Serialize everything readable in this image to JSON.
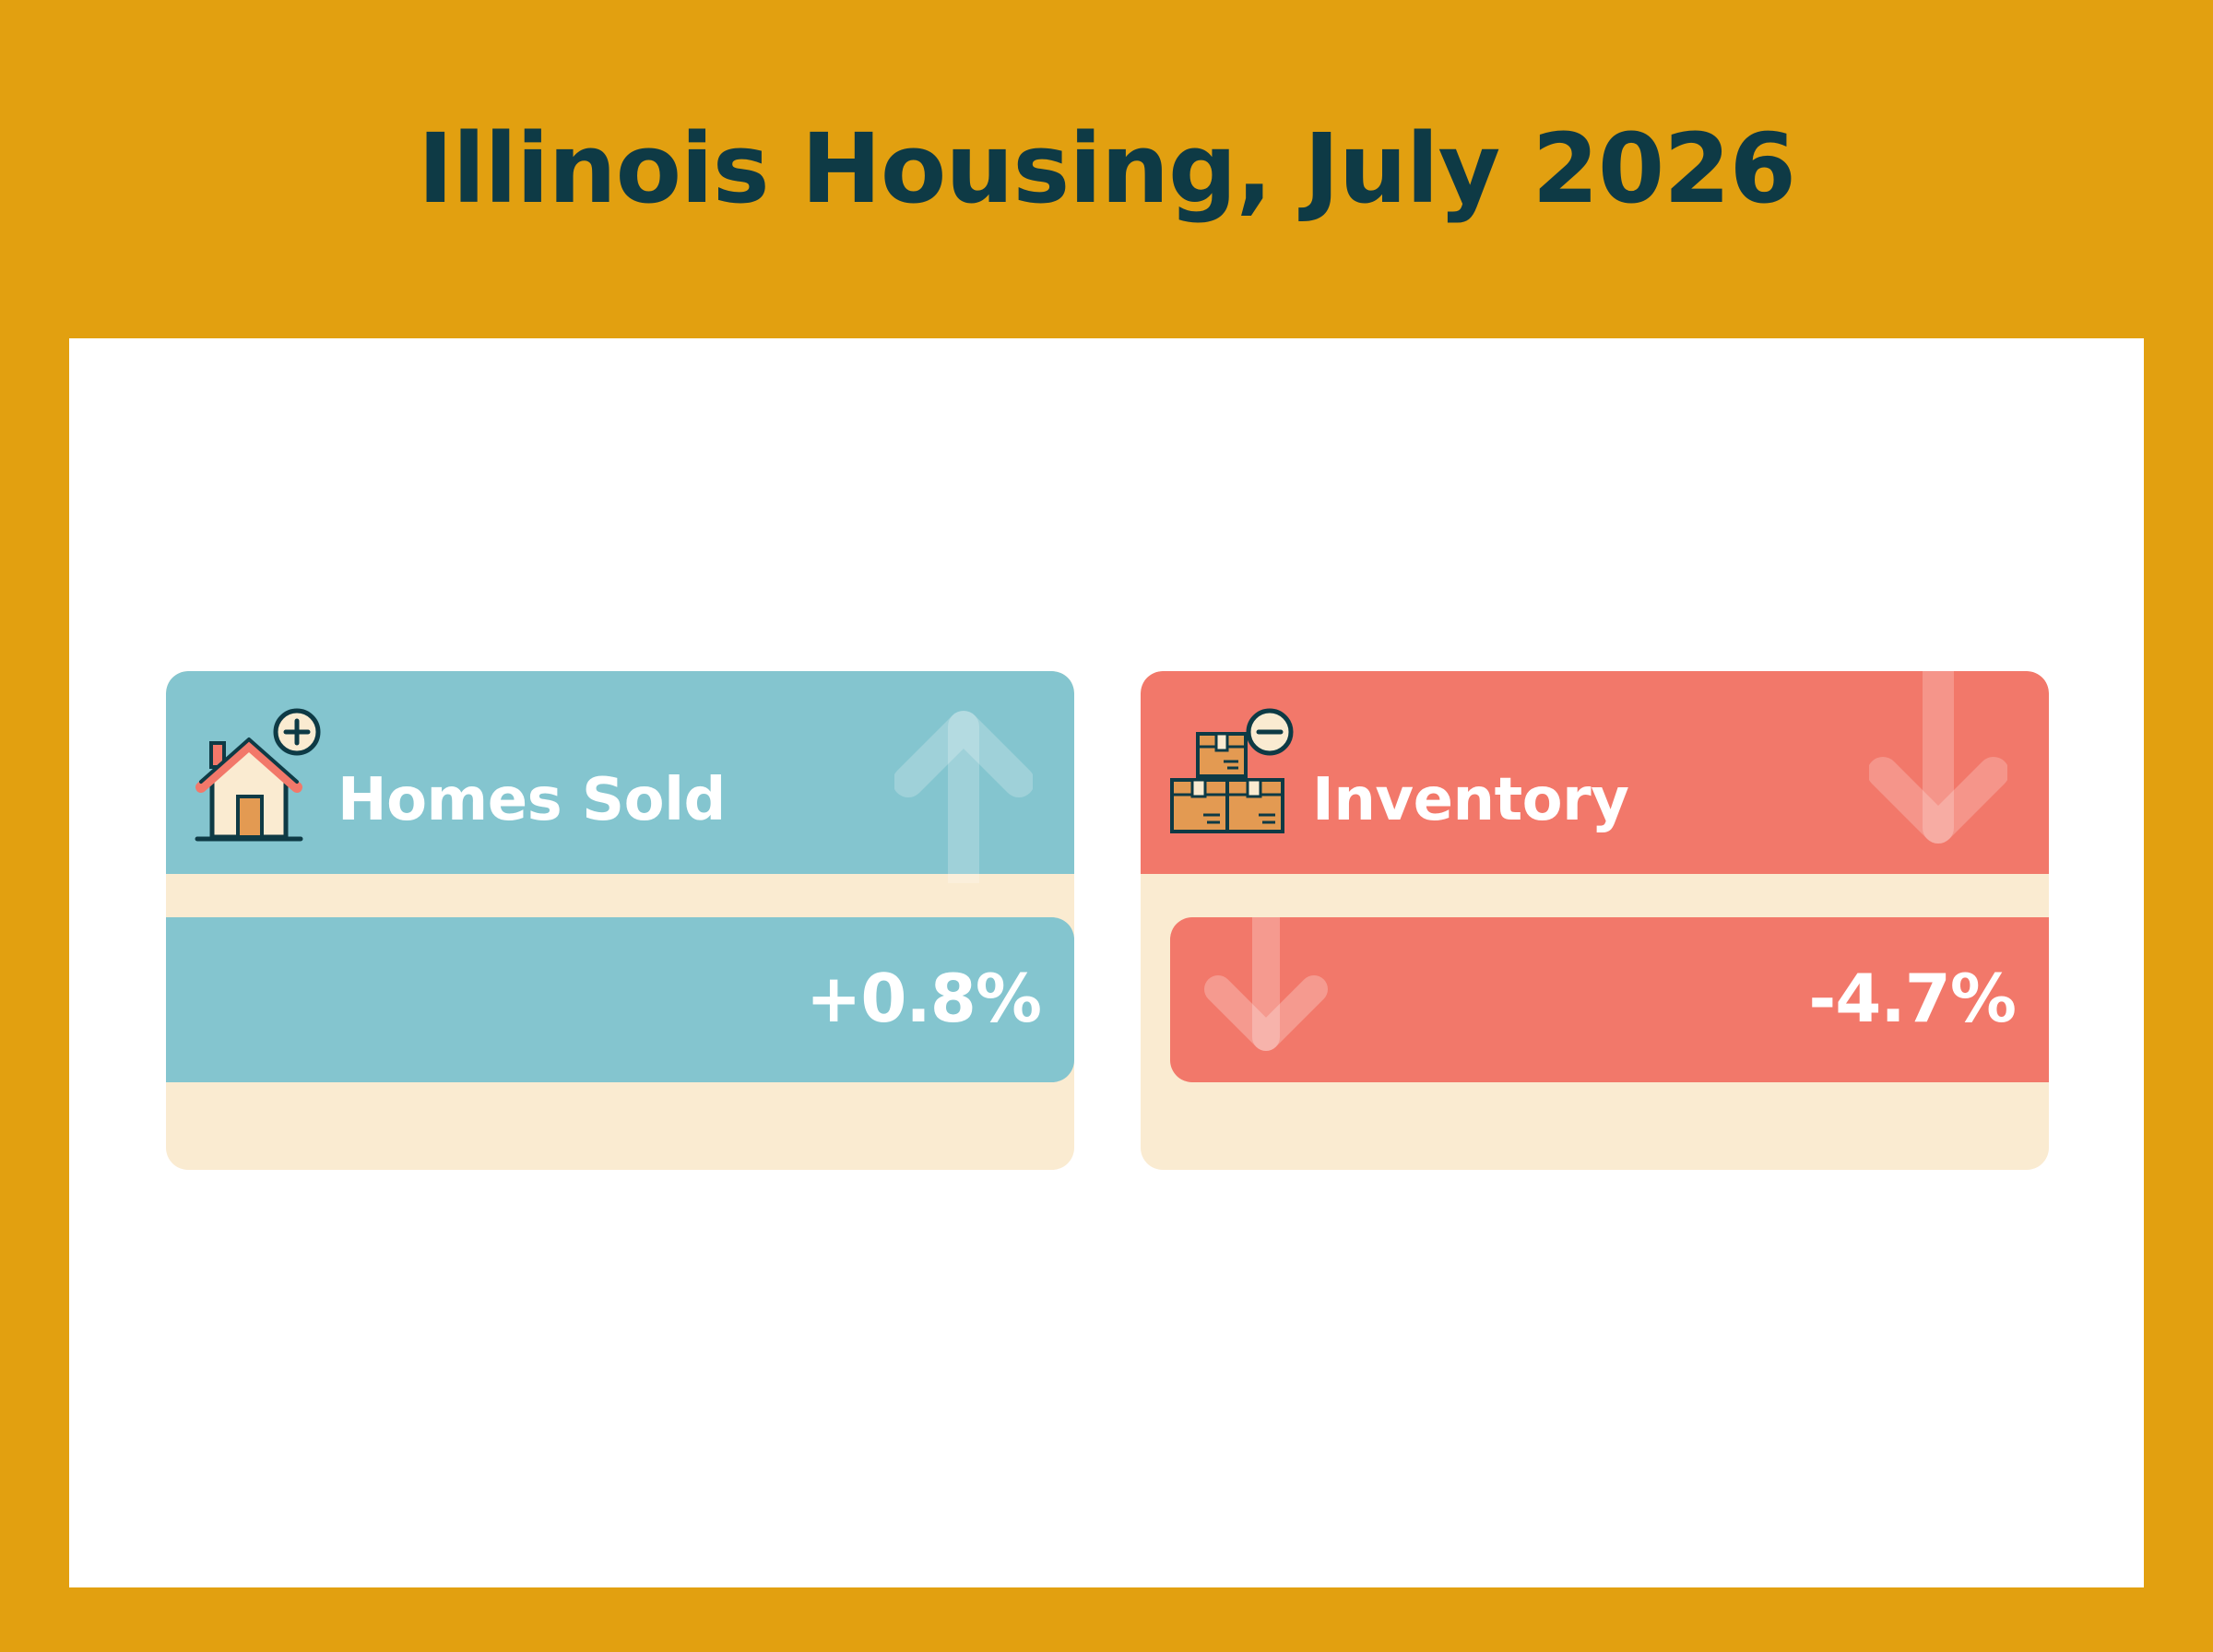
{
  "title": "Illinois Housing, July 2026",
  "cards": [
    {
      "label": "Homes Sold",
      "value": "+0.8%",
      "direction": "up",
      "icon": "house-plus-icon",
      "color": "#84C5CF"
    },
    {
      "label": "Inventory",
      "value": "-4.7%",
      "direction": "down",
      "icon": "boxes-minus-icon",
      "color": "#F2786A"
    }
  ],
  "colors": {
    "background": "#E2A010",
    "title": "#0E3A45",
    "card_base": "#FAEBD1"
  }
}
